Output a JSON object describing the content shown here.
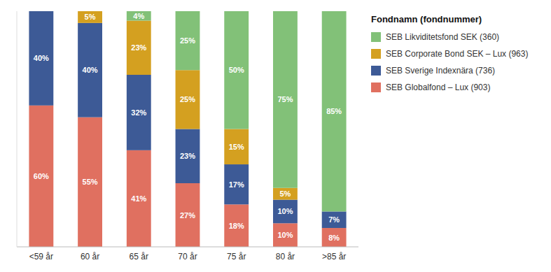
{
  "chart_data": {
    "type": "bar",
    "stacked": true,
    "data_labels": true,
    "grid": false,
    "tick_labels": "x",
    "legend": "right",
    "legend_title": "Fondnamn (fondnummer)",
    "categories": [
      "<59 år",
      "60 år",
      "65 år",
      "70 år",
      "75 år",
      "80 år",
      ">85 år"
    ],
    "ylim": [
      0,
      100
    ],
    "series": [
      {
        "name": "SEB Globalfond – Lux (903)",
        "color": "#E07060",
        "values": [
          60,
          55,
          41,
          27,
          18,
          10,
          8
        ],
        "value_labels": [
          "60%",
          "55%",
          "41%",
          "27%",
          "18%",
          "10%",
          "8%"
        ]
      },
      {
        "name": "SEB Sverige Indexnära (736)",
        "color": "#3D5A96",
        "values": [
          40,
          40,
          32,
          23,
          17,
          10,
          7
        ],
        "value_labels": [
          "40%",
          "40%",
          "32%",
          "23%",
          "17%",
          "10%",
          "7%"
        ]
      },
      {
        "name": "SEB Corporate Bond SEK – Lux (963)",
        "color": "#D4A020",
        "values": [
          0,
          5,
          23,
          25,
          15,
          5,
          0
        ],
        "value_labels": [
          null,
          "5%",
          "23%",
          "25%",
          "15%",
          "5%",
          null
        ]
      },
      {
        "name": "SEB Likviditetsfond SEK (360)",
        "color": "#82C178",
        "values": [
          0,
          0,
          4,
          25,
          50,
          75,
          85
        ],
        "value_labels": [
          null,
          null,
          "4%",
          "25%",
          "50%",
          "75%",
          "85%"
        ]
      }
    ]
  }
}
